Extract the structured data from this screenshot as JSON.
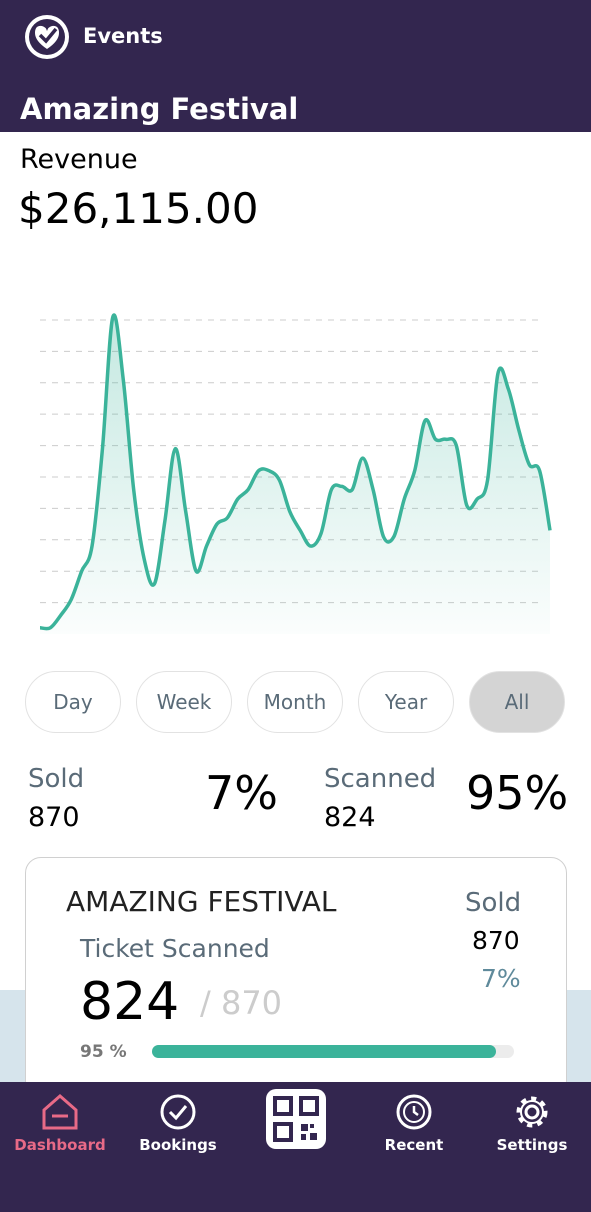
{
  "header": {
    "app_name": "Events",
    "event_title": "Amazing Festival"
  },
  "revenue": {
    "label": "Revenue",
    "amount": "$26,115.00"
  },
  "chart_data": {
    "type": "area",
    "color": "#3bb39a",
    "grid": true,
    "values": [
      0.2,
      0.2,
      0.6,
      1.1,
      2.0,
      2.8,
      5.9,
      10.1,
      8.1,
      4.6,
      2.4,
      1.6,
      3.6,
      5.9,
      3.9,
      2.0,
      2.8,
      3.5,
      3.7,
      4.3,
      4.6,
      5.2,
      5.2,
      4.9,
      3.9,
      3.3,
      2.8,
      3.2,
      4.6,
      4.7,
      4.6,
      5.6,
      4.6,
      3.1,
      3.1,
      4.3,
      5.2,
      6.8,
      6.2,
      6.2,
      6.0,
      4.1,
      4.3,
      4.9,
      8.3,
      7.8,
      6.5,
      5.4,
      5.2,
      3.3
    ],
    "ylim": [
      0,
      10.2
    ],
    "yticks": [
      1,
      2,
      3,
      4,
      5,
      6,
      7,
      8,
      9,
      10
    ]
  },
  "range_buttons": {
    "items": [
      "Day",
      "Week",
      "Month",
      "Year",
      "All"
    ],
    "selected": "All"
  },
  "stats": {
    "sold_label": "Sold",
    "sold_value": "870",
    "sold_percent": "7%",
    "scanned_label": "Scanned",
    "scanned_value": "824",
    "scanned_percent": "95%"
  },
  "card": {
    "title": "AMAZING FESTIVAL",
    "ticket_scanned_label": "Ticket Scanned",
    "scanned": "824",
    "total": "/ 870",
    "sold_label": "Sold",
    "sold_value": "870",
    "sold_percent": "7%",
    "progress": {
      "value": 95,
      "label": "95 %"
    }
  },
  "nav": [
    "Dashboard",
    "Bookings",
    "Recent",
    "Settings"
  ]
}
